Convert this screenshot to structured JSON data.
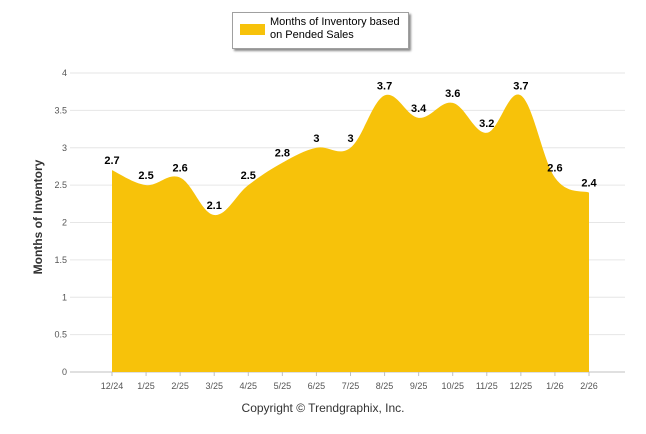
{
  "chart_data": {
    "type": "area",
    "categories": [
      "12/24",
      "1/25",
      "2/25",
      "3/25",
      "4/25",
      "5/25",
      "6/25",
      "7/25",
      "8/25",
      "9/25",
      "10/25",
      "11/25",
      "12/25",
      "1/26",
      "2/26"
    ],
    "series": [
      {
        "name": "Months of Inventory based on Pended Sales",
        "values": [
          2.7,
          2.5,
          2.6,
          2.1,
          2.5,
          2.8,
          3,
          3,
          3.7,
          3.4,
          3.6,
          3.2,
          3.7,
          2.6,
          2.4
        ],
        "labels": [
          "2.7",
          "2.5",
          "2.6",
          "2.1",
          "2.5",
          "2.8",
          "3",
          "3",
          "3.7",
          "3.4",
          "3.6",
          "3.2",
          "3.7",
          "2.6",
          "2.4"
        ]
      }
    ],
    "ylim": [
      0,
      4
    ],
    "yticks": [
      "0",
      "0.5",
      "1",
      "1.5",
      "2",
      "2.5",
      "3",
      "3.5",
      "4"
    ],
    "ylabel": "Months of Inventory",
    "xlabel": "",
    "grid": true,
    "legend": "top-center",
    "color": "#f7c20a"
  },
  "legend": {
    "label": "Months of Inventory based on Pended Sales"
  },
  "footer": {
    "copyright": "Copyright © Trendgraphix, Inc."
  }
}
